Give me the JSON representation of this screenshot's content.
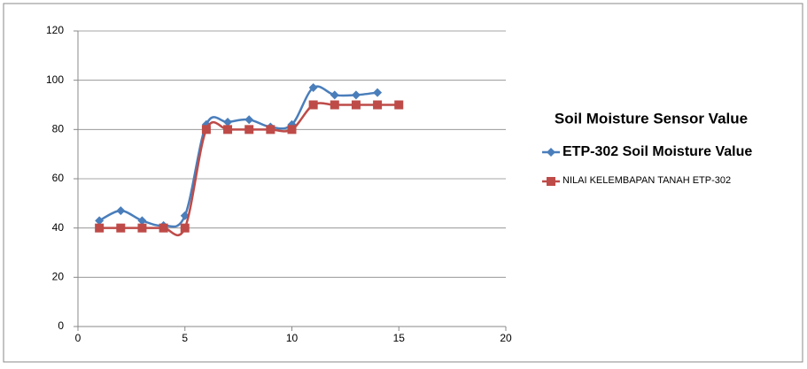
{
  "chart_data": {
    "type": "line",
    "title": "Soil Moisture Sensor Value",
    "series": [
      {
        "name": "ETP-302 Soil Moisture Value",
        "color": "#4a7ebb",
        "marker": "diamond",
        "x": [
          1,
          2,
          3,
          4,
          5,
          6,
          7,
          8,
          9,
          10,
          11,
          12,
          13,
          14
        ],
        "values": [
          43,
          47,
          43,
          41,
          45,
          82,
          83,
          84,
          81,
          82,
          97,
          94,
          94,
          95
        ]
      },
      {
        "name": "NILAI KELEMBAPAN TANAH ETP-302",
        "color": "#be4b48",
        "marker": "square",
        "x": [
          1,
          2,
          3,
          4,
          5,
          6,
          7,
          8,
          9,
          10,
          11,
          12,
          13,
          14,
          15
        ],
        "values": [
          40,
          40,
          40,
          40,
          40,
          80,
          80,
          80,
          80,
          80,
          90,
          90,
          90,
          90,
          90
        ]
      }
    ],
    "xlim": [
      0,
      20
    ],
    "xticks": [
      0,
      5,
      10,
      15,
      20
    ],
    "ylim": [
      0,
      120
    ],
    "yticks": [
      0,
      20,
      40,
      60,
      80,
      100,
      120
    ],
    "grid": true,
    "smooth": true
  }
}
